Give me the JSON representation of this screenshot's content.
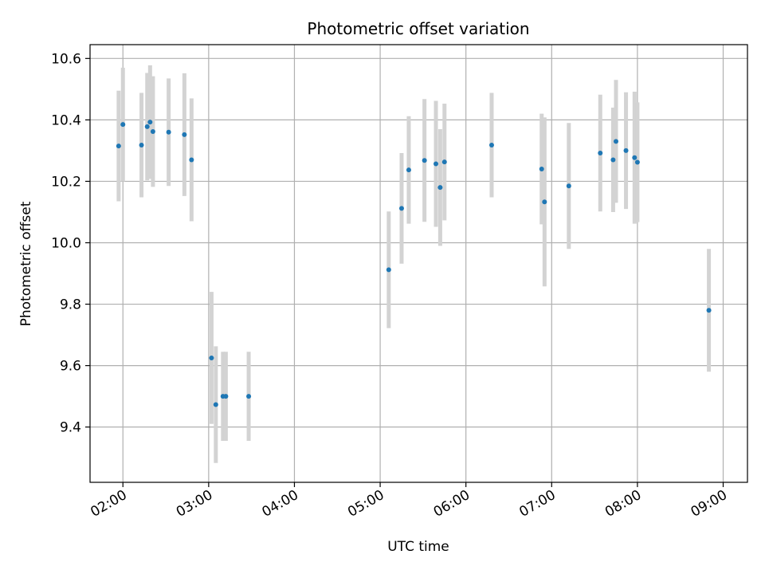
{
  "chart_data": {
    "type": "scatter",
    "title": "Photometric offset variation",
    "xlabel": "UTC time",
    "ylabel": "Photometric offset",
    "x_ticks": [
      "02:00",
      "03:00",
      "04:00",
      "05:00",
      "06:00",
      "07:00",
      "08:00",
      "09:00"
    ],
    "y_ticks": [
      "9.4",
      "9.6",
      "9.8",
      "10.0",
      "10.2",
      "10.4",
      "10.6"
    ],
    "xlim": [
      "01:37",
      "09:17"
    ],
    "ylim": [
      9.22,
      10.645
    ],
    "grid": true,
    "colors": {
      "point": "#1f77b4",
      "errorbar": "#d3d3d3",
      "grid": "#b0b0b0"
    },
    "series": [
      {
        "points": [
          {
            "t": "01:57",
            "y": 10.315,
            "err": 0.18
          },
          {
            "t": "02:00",
            "y": 10.385,
            "err": 0.185
          },
          {
            "t": "02:13",
            "y": 10.318,
            "err": 0.17
          },
          {
            "t": "02:17",
            "y": 10.378,
            "err": 0.175
          },
          {
            "t": "02:19",
            "y": 10.393,
            "err": 0.185
          },
          {
            "t": "02:21",
            "y": 10.362,
            "err": 0.18
          },
          {
            "t": "02:32",
            "y": 10.36,
            "err": 0.175
          },
          {
            "t": "02:43",
            "y": 10.352,
            "err": 0.2
          },
          {
            "t": "02:48",
            "y": 10.27,
            "err": 0.2
          },
          {
            "t": "03:02",
            "y": 9.625,
            "err": 0.215
          },
          {
            "t": "03:05",
            "y": 9.473,
            "err": 0.19
          },
          {
            "t": "03:10",
            "y": 9.5,
            "err": 0.145
          },
          {
            "t": "03:12",
            "y": 9.5,
            "err": 0.145
          },
          {
            "t": "03:28",
            "y": 9.5,
            "err": 0.145
          },
          {
            "t": "05:06",
            "y": 9.912,
            "err": 0.19
          },
          {
            "t": "05:15",
            "y": 10.112,
            "err": 0.18
          },
          {
            "t": "05:20",
            "y": 10.237,
            "err": 0.175
          },
          {
            "t": "05:31",
            "y": 10.268,
            "err": 0.2
          },
          {
            "t": "05:39",
            "y": 10.257,
            "err": 0.205
          },
          {
            "t": "05:42",
            "y": 10.18,
            "err": 0.19
          },
          {
            "t": "05:45",
            "y": 10.263,
            "err": 0.19
          },
          {
            "t": "06:18",
            "y": 10.318,
            "err": 0.17
          },
          {
            "t": "06:53",
            "y": 10.24,
            "err": 0.18
          },
          {
            "t": "06:55",
            "y": 10.133,
            "err": 0.275
          },
          {
            "t": "07:12",
            "y": 10.185,
            "err": 0.205
          },
          {
            "t": "07:34",
            "y": 10.292,
            "err": 0.19
          },
          {
            "t": "07:43",
            "y": 10.27,
            "err": 0.17
          },
          {
            "t": "07:45",
            "y": 10.33,
            "err": 0.2
          },
          {
            "t": "07:52",
            "y": 10.3,
            "err": 0.19
          },
          {
            "t": "07:58",
            "y": 10.277,
            "err": 0.215
          },
          {
            "t": "08:00",
            "y": 10.262,
            "err": 0.195
          },
          {
            "t": "08:50",
            "y": 9.78,
            "err": 0.2
          }
        ]
      }
    ]
  }
}
